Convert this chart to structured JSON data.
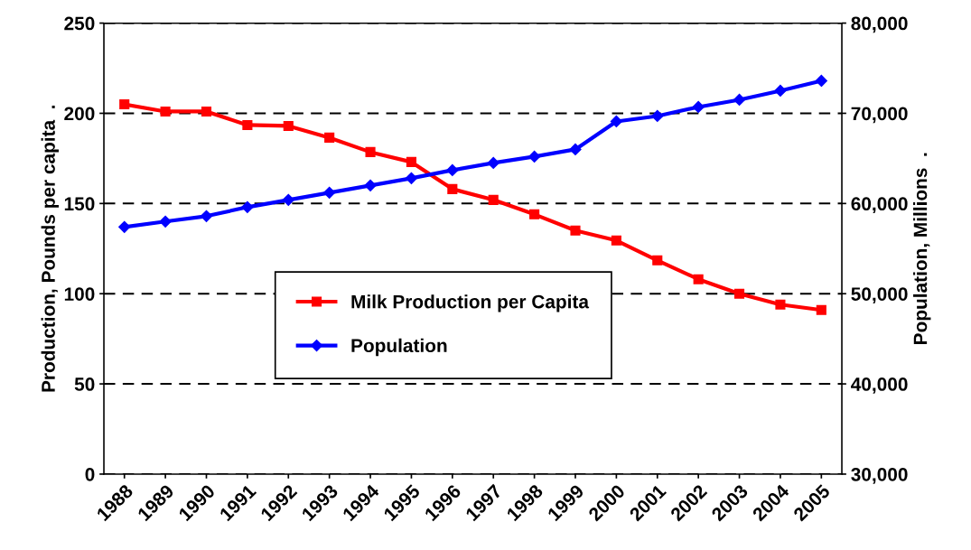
{
  "chart_data": {
    "type": "line",
    "categories": [
      "1988",
      "1989",
      "1990",
      "1991",
      "1992",
      "1993",
      "1994",
      "1995",
      "1996",
      "1997",
      "1998",
      "1999",
      "2000",
      "2001",
      "2002",
      "2003",
      "2004",
      "2005"
    ],
    "ylabel": "Production, Pounds per capita  .",
    "y2label": "Population, Millions  .",
    "ylim": [
      0,
      250
    ],
    "yticks": [
      0,
      50,
      100,
      150,
      200,
      250
    ],
    "y2lim": [
      30000,
      80000
    ],
    "y2ticks": [
      {
        "value": 30000,
        "label": "30,000"
      },
      {
        "value": 40000,
        "label": "40,000"
      },
      {
        "value": 50000,
        "label": "50,000"
      },
      {
        "value": 60000,
        "label": "60,000"
      },
      {
        "value": 70000,
        "label": "70,000"
      },
      {
        "value": 80000,
        "label": "80,000"
      }
    ],
    "grid": "y",
    "legend": "center",
    "line_style": "solid",
    "series": [
      {
        "name": "Milk Production per Capita",
        "color": "#ff0000",
        "marker": "square",
        "values": [
          205,
          201,
          201,
          193.5,
          193,
          186.5,
          178.5,
          173,
          158,
          152,
          144,
          135,
          129.5,
          118.5,
          108,
          100,
          94,
          91
        ]
      },
      {
        "name": "Population",
        "color": "#0000ff",
        "marker": "diamond",
        "axis": "y2",
        "values": [
          57400,
          58000,
          58600,
          59600,
          60400,
          61200,
          62000,
          62800,
          63700,
          64500,
          65200,
          66000,
          69100,
          69700,
          70700,
          71500,
          72500,
          73600
        ]
      }
    ]
  }
}
